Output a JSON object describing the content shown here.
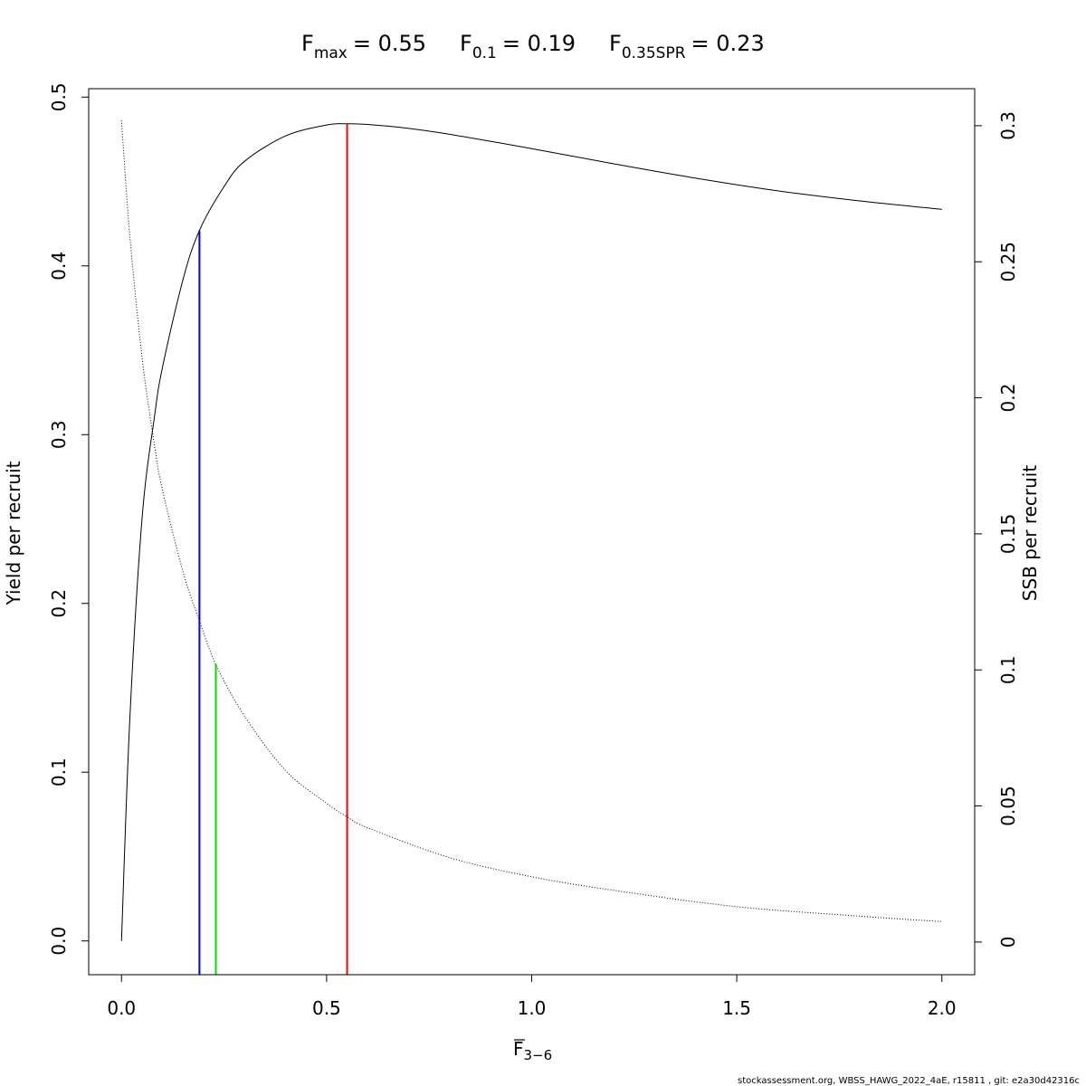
{
  "title": {
    "fmax": {
      "base": "F",
      "sub": "max",
      "value": "= 0.55"
    },
    "f01": {
      "base": "F",
      "sub": "0.1",
      "value": "= 0.19"
    },
    "f35": {
      "base": "F",
      "sub": "0.35SPR",
      "value": "= 0.23"
    }
  },
  "footer": "stockassessment.org, WBSS_HAWG_2022_4aE, r15811 , git: e2a30d42316c",
  "chart_data": {
    "type": "line",
    "xlabel": {
      "base": "F",
      "sub": "3−6",
      "overline": true
    },
    "ylabel": "Yield per recruit",
    "y2label": "SSB per recruit",
    "xlim": [
      -0.08,
      2.08
    ],
    "ylim": [
      -0.02,
      0.505
    ],
    "y2lim": [
      -0.012,
      0.3136
    ],
    "x_ticks": [
      "0.0",
      "0.5",
      "1.0",
      "1.5",
      "2.0"
    ],
    "y_ticks": [
      "0.0",
      "0.1",
      "0.2",
      "0.3",
      "0.4",
      "0.5"
    ],
    "y2_ticks": [
      "0",
      "0.05",
      "0.1",
      "0.15",
      "0.2",
      "0.25",
      "0.3"
    ],
    "grid": false,
    "series": [
      {
        "axis": "left",
        "style": "solid",
        "color": "#000000",
        "x": [
          0.0,
          0.02,
          0.05,
          0.08,
          0.1,
          0.15,
          0.19,
          0.25,
          0.3,
          0.4,
          0.5,
          0.55,
          0.6,
          0.7,
          0.8,
          1.0,
          1.2,
          1.4,
          1.6,
          1.8,
          2.0
        ],
        "y": [
          0.0,
          0.13,
          0.25,
          0.31,
          0.34,
          0.392,
          0.421,
          0.447,
          0.462,
          0.477,
          0.4835,
          0.4842,
          0.4838,
          0.4815,
          0.478,
          0.4695,
          0.4605,
          0.452,
          0.4445,
          0.4385,
          0.4335
        ]
      },
      {
        "axis": "right",
        "style": "dotted",
        "color": "#000000",
        "x": [
          0.0,
          0.02,
          0.05,
          0.08,
          0.1,
          0.15,
          0.19,
          0.23,
          0.3,
          0.4,
          0.5,
          0.55,
          0.6,
          0.8,
          1.0,
          1.2,
          1.5,
          1.8,
          2.0
        ],
        "y": [
          0.302,
          0.26,
          0.215,
          0.183,
          0.166,
          0.136,
          0.118,
          0.102,
          0.083,
          0.063,
          0.051,
          0.046,
          0.042,
          0.031,
          0.024,
          0.019,
          0.013,
          0.0095,
          0.0075
        ]
      }
    ],
    "reference_lines": [
      {
        "x": 0.19,
        "top": 0.421,
        "color": "#0000ff"
      },
      {
        "x": 0.23,
        "top": 0.164,
        "color": "#00dd00"
      },
      {
        "x": 0.55,
        "top": 0.4842,
        "color": "#ff0000"
      }
    ]
  }
}
